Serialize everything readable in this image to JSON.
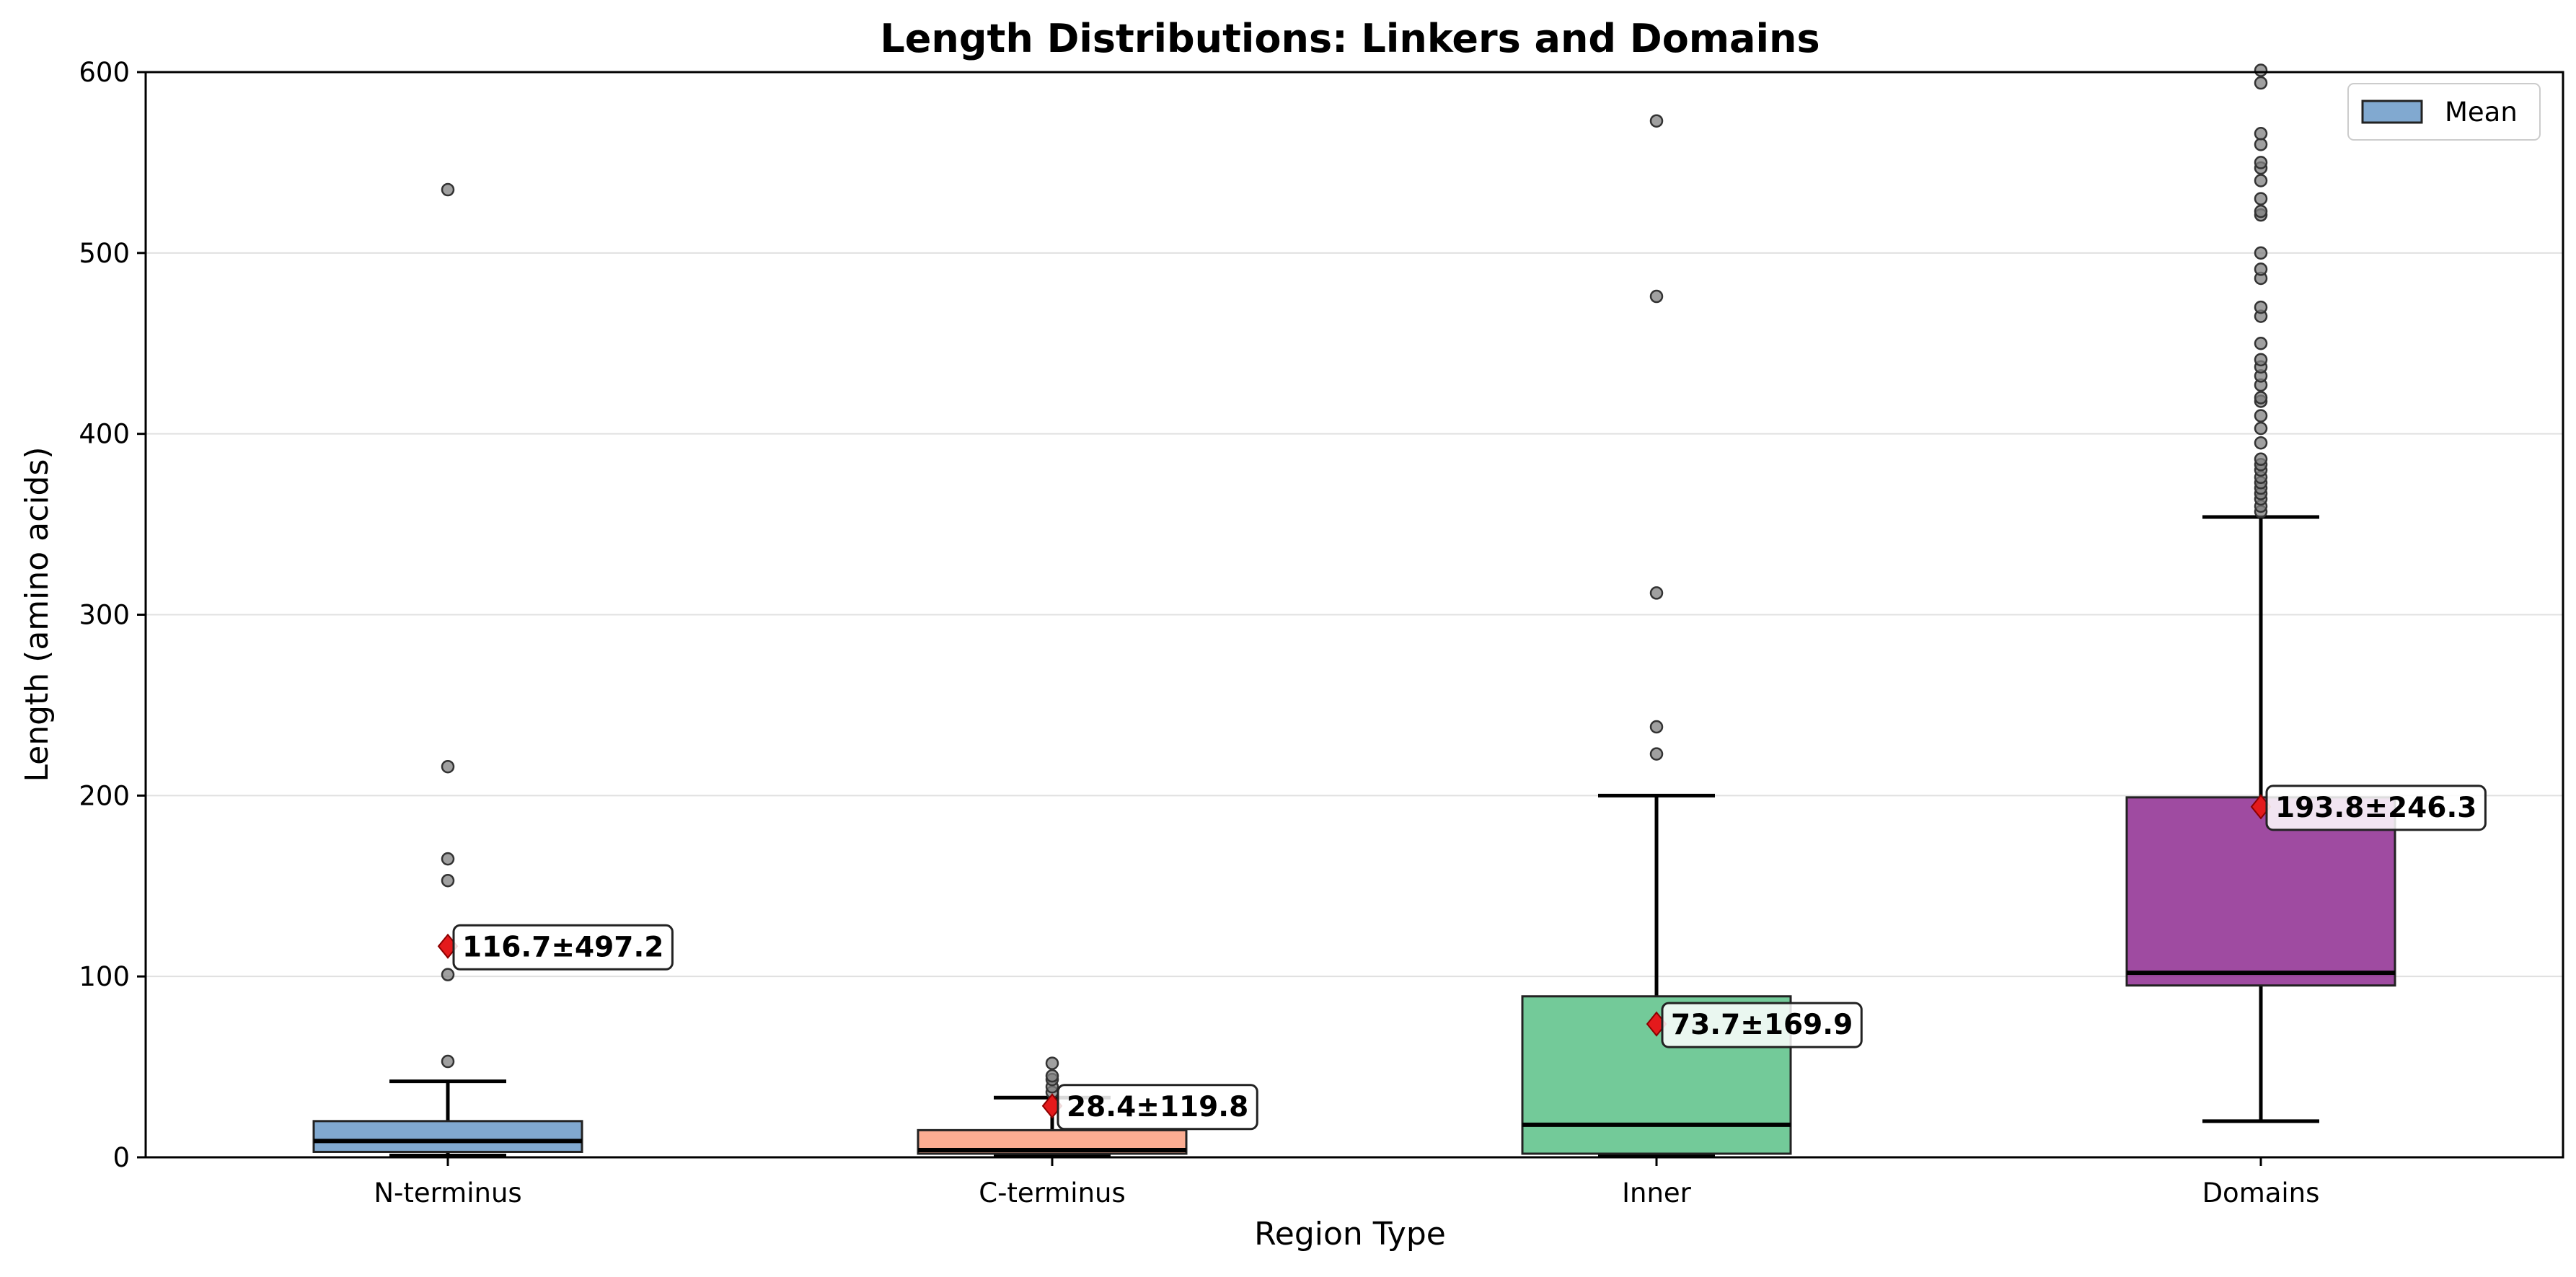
{
  "chart_data": {
    "type": "box",
    "title": "Length Distributions: Linkers and Domains",
    "xlabel": "Region Type",
    "ylabel": "Length (amino acids)",
    "ylim": [
      0,
      600
    ],
    "yticks": [
      0,
      100,
      200,
      300,
      400,
      500,
      600
    ],
    "grid": "y",
    "legend": {
      "entries": [
        "Mean"
      ],
      "placement": "top-right"
    },
    "categories": [
      "N-terminus",
      "C-terminus",
      "Inner",
      "Domains"
    ],
    "boxes": [
      {
        "name": "N-terminus",
        "color": "#6b9ac8",
        "whisker_low": 1,
        "q1": 3,
        "median": 9,
        "q3": 20,
        "whisker_high": 42,
        "mean": 116.7,
        "std": 497.2,
        "annotation": "116.7±497.2",
        "outliers": [
          53,
          101,
          153,
          165,
          216,
          535
        ]
      },
      {
        "name": "C-terminus",
        "color": "#fc9f7f",
        "whisker_low": 1,
        "q1": 2,
        "median": 4,
        "q3": 15,
        "whisker_high": 33,
        "mean": 28.4,
        "std": 119.8,
        "annotation": "28.4±119.8",
        "outliers": [
          36,
          39,
          43,
          45,
          52
        ]
      },
      {
        "name": "Inner",
        "color": "#5ac187",
        "whisker_low": 1,
        "q1": 2,
        "median": 18,
        "q3": 89,
        "whisker_high": 200,
        "mean": 73.7,
        "std": 169.9,
        "annotation": "73.7±169.9",
        "outliers": [
          223,
          238,
          312,
          476,
          573
        ]
      },
      {
        "name": "Domains",
        "color": "#8e2c91",
        "whisker_low": 20,
        "q1": 95,
        "median": 102,
        "q3": 199,
        "whisker_high": 354,
        "mean": 193.8,
        "std": 246.3,
        "annotation": "193.8±246.3",
        "outliers": [
          357,
          360,
          364,
          367,
          370,
          373,
          376,
          380,
          383,
          386,
          395,
          403,
          410,
          418,
          420,
          427,
          432,
          437,
          441,
          450,
          465,
          470,
          486,
          491,
          500,
          521,
          523,
          530,
          540,
          547,
          550,
          560,
          566,
          594,
          601
        ]
      }
    ],
    "colors": {
      "whisker": "#000000",
      "median": "#000000",
      "mean_marker": "#e41a1c",
      "outlier": "#808080",
      "grid": "#e0e0e0"
    }
  }
}
